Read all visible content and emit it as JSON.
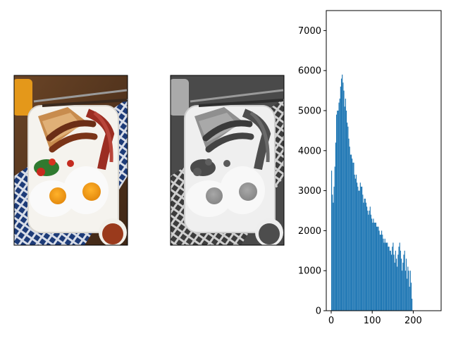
{
  "figure": {
    "panels": [
      {
        "kind": "photo",
        "variant": "color",
        "subject": "full breakfast plate"
      },
      {
        "kind": "photo",
        "variant": "grayscale",
        "subject": "full breakfast plate"
      }
    ]
  },
  "chart_data": {
    "type": "bar",
    "title": "",
    "xlabel": "",
    "ylabel": "",
    "xlim": [
      -12,
      268
    ],
    "ylim": [
      0,
      7500
    ],
    "x_ticks": [
      0,
      100,
      200
    ],
    "y_ticks": [
      0,
      1000,
      2000,
      3000,
      4000,
      5000,
      6000,
      7000
    ],
    "x_tick_labels": [
      "0",
      "100",
      "200"
    ],
    "y_tick_labels": [
      "0",
      "1000",
      "2000",
      "3000",
      "4000",
      "5000",
      "6000",
      "7000"
    ],
    "bar_color": "#1f77b4",
    "grid": false,
    "bins_x": [
      0,
      2,
      4,
      6,
      8,
      10,
      12,
      14,
      16,
      18,
      20,
      22,
      24,
      26,
      28,
      30,
      32,
      34,
      36,
      38,
      40,
      42,
      44,
      46,
      48,
      50,
      52,
      54,
      56,
      58,
      60,
      62,
      64,
      66,
      68,
      70,
      72,
      74,
      76,
      78,
      80,
      82,
      84,
      86,
      88,
      90,
      92,
      94,
      96,
      98,
      100,
      102,
      104,
      106,
      108,
      110,
      112,
      114,
      116,
      118,
      120,
      122,
      124,
      126,
      128,
      130,
      132,
      134,
      136,
      138,
      140,
      142,
      144,
      146,
      148,
      150,
      152,
      154,
      156,
      158,
      160,
      162,
      164,
      166,
      168,
      170,
      172,
      174,
      176,
      178,
      180,
      182,
      184,
      186,
      188,
      190,
      192,
      194,
      196
    ],
    "bins_values": [
      3500,
      2900,
      2700,
      3100,
      3600,
      4200,
      4900,
      5000,
      5000,
      5200,
      5300,
      5600,
      5800,
      5900,
      5700,
      5500,
      5100,
      5300,
      5000,
      4700,
      4600,
      4300,
      4100,
      3900,
      3900,
      3800,
      3700,
      3700,
      3400,
      3300,
      3400,
      3200,
      3100,
      3000,
      3000,
      3200,
      3100,
      3100,
      2900,
      2700,
      2800,
      2800,
      2700,
      2600,
      2500,
      2400,
      2500,
      2600,
      2400,
      2300,
      2200,
      2300,
      2200,
      2200,
      2200,
      2100,
      2100,
      2100,
      2000,
      1900,
      1900,
      2000,
      1900,
      1800,
      1700,
      1800,
      1700,
      1700,
      1700,
      1600,
      1600,
      1500,
      1500,
      1400,
      1600,
      1700,
      1400,
      1200,
      1500,
      1300,
      1100,
      1400,
      1600,
      1700,
      1500,
      1300,
      1000,
      1200,
      1400,
      1500,
      1000,
      1300,
      800,
      1100,
      1000,
      600,
      1000,
      700,
      300
    ]
  }
}
